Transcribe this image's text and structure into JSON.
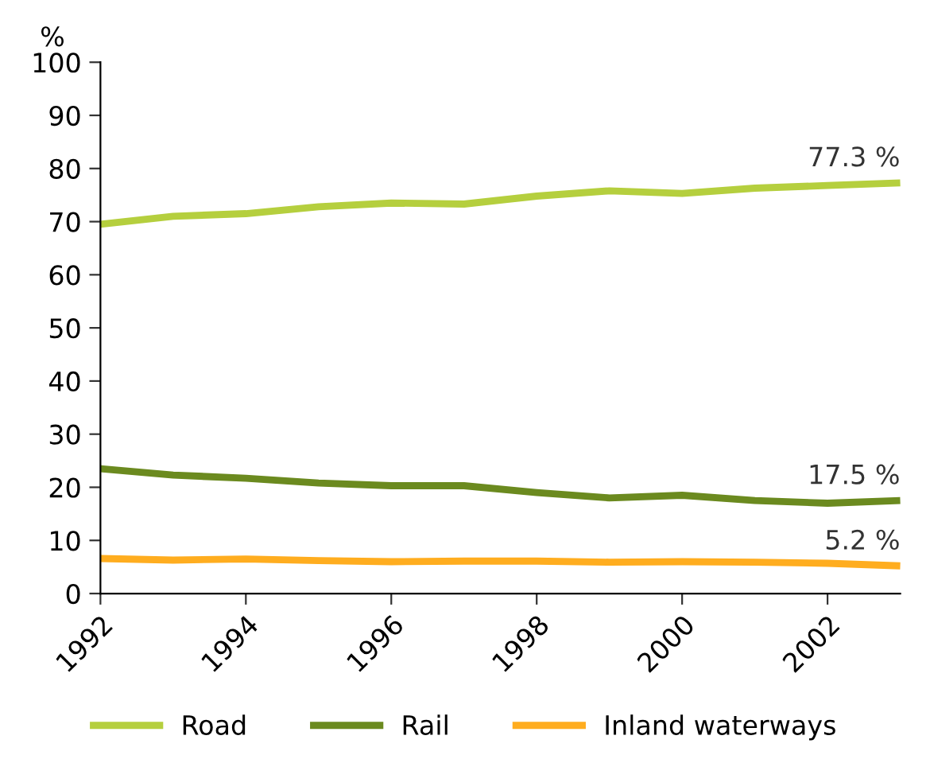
{
  "chart_data": {
    "type": "line",
    "ylabel": "%",
    "x": [
      1992,
      1993,
      1994,
      1995,
      1996,
      1997,
      1998,
      1999,
      2000,
      2001,
      2002,
      2003
    ],
    "series": [
      {
        "name": "Road",
        "color": "#b5cf3e",
        "values": [
          69.5,
          71,
          71.5,
          72.8,
          73.5,
          73.3,
          74.8,
          75.8,
          75.3,
          76.3,
          76.8,
          77.3
        ],
        "value_labels": [
          null,
          null,
          null,
          null,
          null,
          null,
          null,
          null,
          null,
          null,
          null,
          "77.3 %"
        ]
      },
      {
        "name": "Rail",
        "color": "#6b8a1f",
        "values": [
          23.5,
          22.3,
          21.7,
          20.8,
          20.3,
          20.3,
          19,
          18,
          18.5,
          17.5,
          17,
          17.5
        ],
        "value_labels": [
          null,
          null,
          null,
          null,
          null,
          null,
          null,
          null,
          null,
          null,
          null,
          "17.5 %"
        ]
      },
      {
        "name": "Inland waterways",
        "color": "#ffad1f",
        "values": [
          6.6,
          6.3,
          6.5,
          6.2,
          6.0,
          6.1,
          6.1,
          5.9,
          6.0,
          5.9,
          5.7,
          5.2
        ],
        "value_labels": [
          null,
          null,
          null,
          null,
          null,
          null,
          null,
          null,
          null,
          null,
          null,
          "5.2 %"
        ]
      }
    ],
    "xlim": [
      1992,
      2003
    ],
    "xticks": [
      1992,
      1994,
      1996,
      1998,
      2000,
      2002
    ],
    "ylim": [
      0,
      100
    ],
    "yticks": [
      0,
      10,
      20,
      30,
      40,
      50,
      60,
      70,
      80,
      90,
      100
    ],
    "grid": false,
    "legend": "bottom",
    "marker": "none",
    "line_style": "solid"
  }
}
